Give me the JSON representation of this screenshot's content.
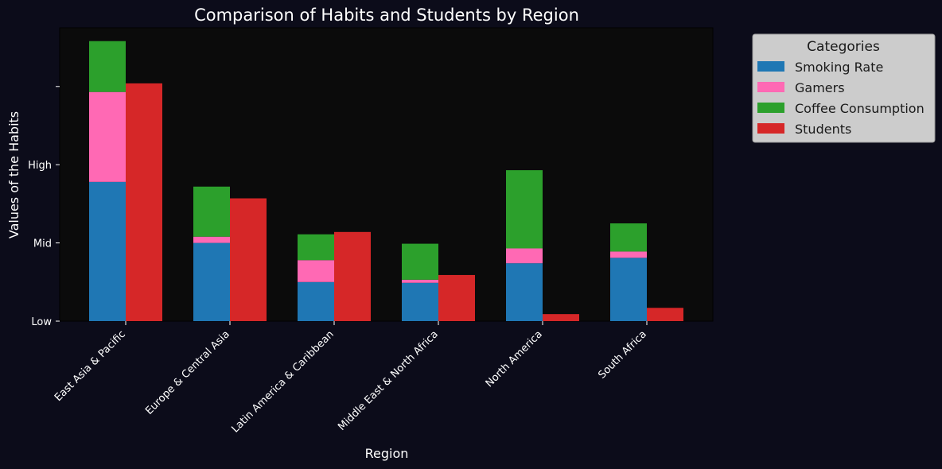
{
  "chart_data": {
    "type": "bar",
    "stacked": true,
    "title": "Comparison of Habits and Students by Region",
    "xlabel": "Region",
    "ylabel": "Values of the Habits",
    "categories": [
      "East Asia & Pacific",
      "Europe & Central Asia",
      "Latin America & Caribbean",
      "Middle East & North Africa",
      "North America",
      "South Africa"
    ],
    "y_ticks": [
      {
        "value": 0,
        "label": "Low"
      },
      {
        "value": 1,
        "label": "Mid"
      },
      {
        "value": 2,
        "label": "High"
      },
      {
        "value": 3,
        "label": ""
      }
    ],
    "ylim": [
      0,
      3.75
    ],
    "habit_series": [
      {
        "name": "Smoking Rate",
        "color": "#1f77b4",
        "values": [
          1.78,
          1.0,
          0.5,
          0.49,
          0.74,
          0.81
        ]
      },
      {
        "name": "Gamers",
        "color": "#ff69b4",
        "values": [
          1.15,
          0.08,
          0.28,
          0.04,
          0.19,
          0.08
        ]
      },
      {
        "name": "Coffee Consumption",
        "color": "#2ca02c",
        "values": [
          0.65,
          0.64,
          0.33,
          0.46,
          1.0,
          0.36
        ]
      }
    ],
    "student_series": {
      "name": "Students",
      "color": "#d62728",
      "values": [
        3.04,
        1.57,
        1.14,
        0.59,
        0.09,
        0.17
      ]
    },
    "legend": {
      "title": "Categories",
      "placement": "outside-right",
      "entries": [
        "Smoking Rate",
        "Gamers",
        "Coffee Consumption",
        "Students"
      ]
    },
    "grid": false
  }
}
